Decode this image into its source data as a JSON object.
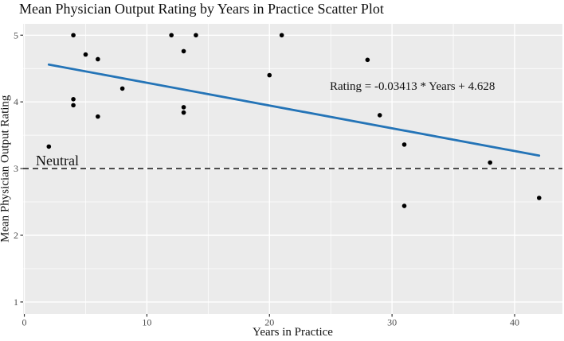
{
  "chart_data": {
    "type": "scatter",
    "title": "Mean Physician Output Rating by Years in Practice Scatter Plot",
    "xlabel": "Years in Practice",
    "ylabel": "Mean Physician Output Rating",
    "xlim": [
      -0.1,
      43.9
    ],
    "ylim": [
      0.82,
      5.17
    ],
    "x_ticks": [
      0,
      10,
      20,
      30,
      40
    ],
    "x_minor_ticks": [
      5,
      15,
      25,
      35
    ],
    "y_ticks": [
      5,
      4,
      3,
      2,
      1
    ],
    "y_minor_ticks": [
      4.5,
      3.5,
      2.5,
      1.5
    ],
    "grid": "on",
    "points": [
      [
        2,
        3.33
      ],
      [
        4,
        5
      ],
      [
        4,
        4.04
      ],
      [
        4,
        3.95
      ],
      [
        5,
        4.71
      ],
      [
        6,
        4.64
      ],
      [
        6,
        3.78
      ],
      [
        8,
        4.2
      ],
      [
        12,
        5
      ],
      [
        13,
        4.76
      ],
      [
        13,
        3.92
      ],
      [
        13,
        3.84
      ],
      [
        14,
        5
      ],
      [
        20,
        4.4
      ],
      [
        21,
        5
      ],
      [
        28,
        4.63
      ],
      [
        29,
        3.8
      ],
      [
        31,
        3.36
      ],
      [
        31,
        2.44
      ],
      [
        38,
        3.09
      ],
      [
        42,
        2.56
      ]
    ],
    "trend_line": {
      "slope": -0.03413,
      "intercept": 4.628,
      "x_start": 2,
      "x_end": 42,
      "equation_label": "Rating = -0.03413 * Years + 4.628",
      "color": "#2474b7"
    },
    "reference_line": {
      "y": 3,
      "label": "Neutral",
      "style": "dashed",
      "color": "#000000"
    },
    "colors": {
      "panel_bg": "#ebebeb",
      "grid": "#ffffff",
      "point": "#000000",
      "tick_label": "#4d4d4d",
      "tick_mark": "#333333"
    }
  }
}
